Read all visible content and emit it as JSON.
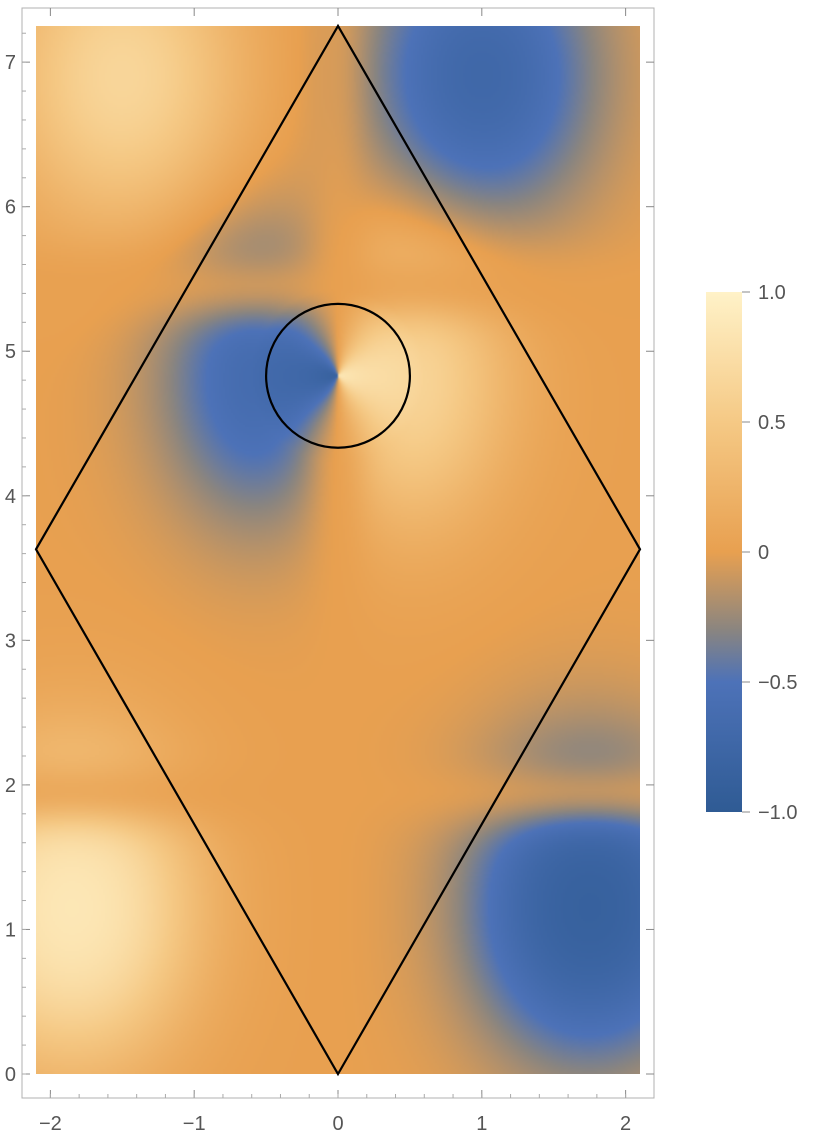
{
  "chart_data": {
    "type": "heatmap",
    "title": "",
    "xlabel": "",
    "ylabel": "",
    "xlim": [
      -2.1,
      2.1
    ],
    "ylim": [
      0,
      7.25
    ],
    "x_ticks": [
      -2,
      -1,
      0,
      1,
      2
    ],
    "x_tick_labels": [
      "−2",
      "−1",
      "0",
      "1",
      "2"
    ],
    "y_ticks": [
      0,
      1,
      2,
      3,
      4,
      5,
      6,
      7
    ],
    "y_tick_labels": [
      "0",
      "1",
      "2",
      "3",
      "4",
      "5",
      "6",
      "7"
    ],
    "colorbar": {
      "range": [
        -1.0,
        1.0
      ],
      "ticks": [
        1.0,
        0.5,
        0,
        -0.5,
        -1.0
      ],
      "tick_labels": [
        "1.0",
        "0.5",
        "0",
        "−0.5",
        "−1.0"
      ],
      "colors": {
        "low": "#2f5b94",
        "low_mid": "#4d72b8",
        "mid_neg": "#8a8580",
        "zero": "#e8a050",
        "high_mid": "#f5c985",
        "high": "#fff2c8"
      }
    },
    "field_features": [
      {
        "x": -0.3,
        "y": 4.82,
        "value": -1.0
      },
      {
        "x": 0.25,
        "y": 4.82,
        "value": 1.0
      },
      {
        "x": -1.85,
        "y": 1.15,
        "value": 1.0
      },
      {
        "x": 1.75,
        "y": 1.15,
        "value": -1.0
      },
      {
        "x": 1.0,
        "y": 6.9,
        "value": -0.7
      },
      {
        "x": -1.5,
        "y": 6.9,
        "value": 0.6
      }
    ],
    "overlay_rhombus": [
      [
        0,
        0
      ],
      [
        2.1,
        3.63
      ],
      [
        0,
        7.25
      ],
      [
        -2.1,
        3.63
      ]
    ],
    "overlay_circle": {
      "cx": 0,
      "cy": 4.83,
      "r": 0.5
    },
    "line_color": "#000000"
  }
}
